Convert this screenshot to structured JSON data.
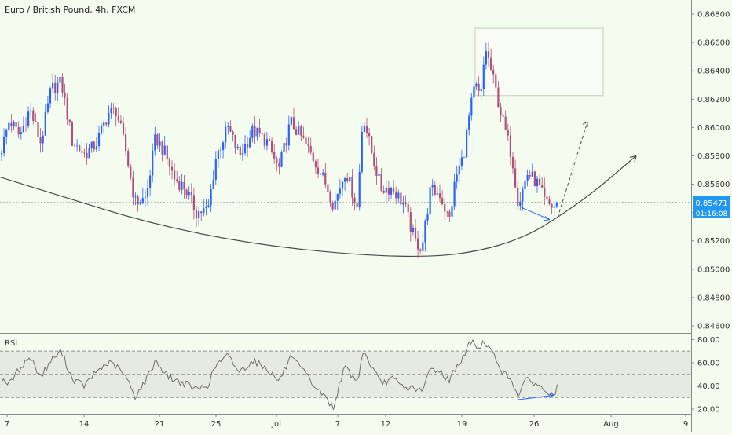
{
  "chart_title": "Euro / British Pound, 4h, FXCM",
  "rsi_label": "RSI",
  "price_tag": {
    "value": "0.85471",
    "countdown": "01:16:08",
    "color": "#2196f3"
  },
  "colors": {
    "up": "#2962ff",
    "down": "#b24e7a",
    "rsi_line": "#6f6f6f",
    "background": "#f4fbef"
  },
  "chart_data": [
    {
      "type": "candlestick",
      "title": "Euro / British Pound, 4h, FXCM",
      "y_ticks": [
        "0.86800",
        "0.86600",
        "0.86400",
        "0.86200",
        "0.86000",
        "0.85800",
        "0.85600",
        "0.85400",
        "0.85200",
        "0.85000",
        "0.84800",
        "0.84600"
      ],
      "ylim": [
        0.8455,
        0.869
      ],
      "x_ticks": [
        "7",
        "14",
        "21",
        "25",
        "Jul",
        "7",
        "12",
        "19",
        "26",
        "Aug",
        "9"
      ],
      "last_price": 0.85471,
      "anchors": [
        [
          0,
          0.8581
        ],
        [
          12,
          0.8605
        ],
        [
          25,
          0.8594
        ],
        [
          38,
          0.8613
        ],
        [
          52,
          0.8589
        ],
        [
          65,
          0.8627
        ],
        [
          78,
          0.8632
        ],
        [
          92,
          0.859
        ],
        [
          108,
          0.8581
        ],
        [
          122,
          0.8588
        ],
        [
          138,
          0.861
        ],
        [
          148,
          0.8612
        ],
        [
          160,
          0.8584
        ],
        [
          172,
          0.8547
        ],
        [
          186,
          0.855
        ],
        [
          198,
          0.8593
        ],
        [
          210,
          0.8582
        ],
        [
          222,
          0.8564
        ],
        [
          236,
          0.8557
        ],
        [
          250,
          0.854
        ],
        [
          265,
          0.8542
        ],
        [
          275,
          0.8579
        ],
        [
          290,
          0.86
        ],
        [
          305,
          0.858
        ],
        [
          322,
          0.8598
        ],
        [
          340,
          0.859
        ],
        [
          355,
          0.857
        ],
        [
          370,
          0.8604
        ],
        [
          385,
          0.8592
        ],
        [
          400,
          0.8577
        ],
        [
          415,
          0.856
        ],
        [
          425,
          0.8545
        ],
        [
          440,
          0.857
        ],
        [
          455,
          0.8543
        ],
        [
          462,
          0.861
        ],
        [
          472,
          0.8585
        ],
        [
          485,
          0.8557
        ],
        [
          500,
          0.8557
        ],
        [
          515,
          0.8545
        ],
        [
          528,
          0.852
        ],
        [
          537,
          0.8515
        ],
        [
          548,
          0.8556
        ],
        [
          560,
          0.8553
        ],
        [
          572,
          0.8534
        ],
        [
          580,
          0.8564
        ],
        [
          590,
          0.858
        ],
        [
          598,
          0.861
        ],
        [
          605,
          0.863
        ],
        [
          612,
          0.862
        ],
        [
          618,
          0.8657
        ],
        [
          628,
          0.8634
        ],
        [
          640,
          0.8605
        ],
        [
          652,
          0.8579
        ],
        [
          660,
          0.8546
        ],
        [
          672,
          0.8568
        ],
        [
          685,
          0.856
        ],
        [
          695,
          0.8546
        ],
        [
          705,
          0.8544
        ],
        [
          710,
          0.85471
        ]
      ],
      "series": [
        {
          "name": "EURGBP"
        }
      ],
      "annotations": {
        "rectangle": {
          "x0": 605,
          "x1": 768,
          "y0": 0.867,
          "y1": 0.86225
        },
        "arc_points": [
          [
            0,
            0.8565
          ],
          [
            250,
            0.8522
          ],
          [
            520,
            0.8506
          ],
          [
            650,
            0.8516
          ],
          [
            740,
            0.8547
          ],
          [
            810,
            0.858
          ]
        ],
        "dashed_arrow": {
          "x0": 710,
          "y0": 0.85365,
          "x1": 748,
          "y1": 0.8604
        },
        "divergence_arrow": {
          "x0": 662,
          "y0": 0.8544,
          "x1": 700,
          "y1": 0.8535
        }
      }
    },
    {
      "type": "line",
      "title": "RSI",
      "y_ticks": [
        "80.00",
        "60.00",
        "40.00",
        "20.00"
      ],
      "ylim": [
        16,
        85
      ],
      "band": [
        30,
        70
      ],
      "midline": 50,
      "anchors": [
        [
          0,
          47
        ],
        [
          12,
          42
        ],
        [
          25,
          55
        ],
        [
          38,
          65
        ],
        [
          52,
          48
        ],
        [
          65,
          62
        ],
        [
          78,
          70
        ],
        [
          92,
          46
        ],
        [
          108,
          40
        ],
        [
          122,
          52
        ],
        [
          138,
          60
        ],
        [
          148,
          57
        ],
        [
          160,
          48
        ],
        [
          172,
          31
        ],
        [
          186,
          45
        ],
        [
          198,
          62
        ],
        [
          210,
          51
        ],
        [
          222,
          45
        ],
        [
          236,
          42
        ],
        [
          250,
          37
        ],
        [
          265,
          41
        ],
        [
          275,
          58
        ],
        [
          290,
          66
        ],
        [
          305,
          52
        ],
        [
          322,
          62
        ],
        [
          340,
          55
        ],
        [
          355,
          44
        ],
        [
          370,
          64
        ],
        [
          385,
          54
        ],
        [
          400,
          40
        ],
        [
          415,
          30
        ],
        [
          425,
          20
        ],
        [
          432,
          43
        ],
        [
          440,
          56
        ],
        [
          455,
          43
        ],
        [
          462,
          70
        ],
        [
          472,
          58
        ],
        [
          485,
          42
        ],
        [
          500,
          46
        ],
        [
          515,
          38
        ],
        [
          528,
          39
        ],
        [
          537,
          34
        ],
        [
          548,
          55
        ],
        [
          560,
          53
        ],
        [
          572,
          44
        ],
        [
          580,
          56
        ],
        [
          590,
          64
        ],
        [
          598,
          78
        ],
        [
          605,
          76
        ],
        [
          612,
          72
        ],
        [
          616,
          80
        ],
        [
          628,
          67
        ],
        [
          640,
          52
        ],
        [
          652,
          44
        ],
        [
          660,
          32
        ],
        [
          672,
          47
        ],
        [
          685,
          40
        ],
        [
          695,
          36
        ],
        [
          705,
          30
        ],
        [
          710,
          42
        ]
      ],
      "divergence_arrow": {
        "x0": 658,
        "y0": 28,
        "x1": 705,
        "y1": 32
      }
    }
  ]
}
